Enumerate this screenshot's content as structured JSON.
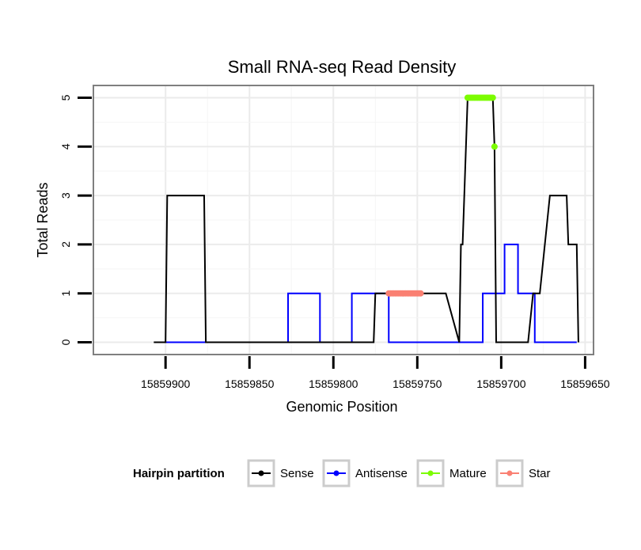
{
  "chart_data": {
    "type": "line",
    "title": "Small RNA-seq Read Density",
    "xlabel": "Genomic Position",
    "ylabel": "Total Reads",
    "x_reversed": true,
    "xlim": [
      15859943,
      15859645
    ],
    "ylim": [
      -0.25,
      5.25
    ],
    "x_ticks": [
      15859900,
      15859850,
      15859800,
      15859750,
      15859700,
      15859650
    ],
    "x_tick_labels": [
      "15859900",
      "15859850",
      "15859800",
      "15859750",
      "15859700",
      "15859650"
    ],
    "y_ticks": [
      0,
      1,
      2,
      3,
      4,
      5
    ],
    "y_tick_labels": [
      "0",
      "1",
      "2",
      "3",
      "4",
      "5"
    ],
    "grid": true,
    "legend": {
      "title": "Hairpin partition",
      "position": "bottom",
      "entries": [
        {
          "name": "Sense",
          "color": "#000000"
        },
        {
          "name": "Antisense",
          "color": "#0000ff"
        },
        {
          "name": "Mature",
          "color": "#7cfc00"
        },
        {
          "name": "Star",
          "color": "#fa8072"
        }
      ]
    },
    "series": [
      {
        "name": "Sense",
        "color": "#000000",
        "style": "line",
        "x": [
          15859907,
          15859900,
          15859899,
          15859877,
          15859876,
          15859830,
          15859829,
          15859820,
          15859815,
          15859805,
          15859798,
          15859793,
          15859787,
          15859776,
          15859775,
          15859758,
          15859751,
          15859750,
          15859742,
          15859738,
          15859733,
          15859725,
          15859724,
          15859723,
          15859720,
          15859714,
          15859709,
          15859705,
          15859704,
          15859703,
          15859684,
          15859681,
          15859678,
          15859677,
          15859671,
          15859661,
          15859660,
          15859655,
          15859654
        ],
        "y": [
          0,
          0,
          3,
          3,
          0,
          0,
          0,
          0,
          0,
          0,
          0,
          0,
          0,
          0,
          1,
          1,
          1,
          1,
          1,
          1,
          1,
          0,
          2,
          2,
          5,
          5,
          5,
          5,
          4,
          0,
          0,
          1,
          1,
          1,
          3,
          3,
          2,
          2,
          0
        ]
      },
      {
        "name": "Antisense",
        "color": "#0000ff",
        "style": "line",
        "x": [
          15859900,
          15859830,
          15859830,
          15859827,
          15859827,
          15859808,
          15859808,
          15859789,
          15859789,
          15859776,
          15859767,
          15859767,
          15859745,
          15859745,
          15859711,
          15859711,
          15859698,
          15859698,
          15859690,
          15859690,
          15859681,
          15859680,
          15859680,
          15859655
        ],
        "y": [
          0,
          0,
          0,
          0,
          1,
          1,
          0,
          0,
          1,
          1,
          1,
          0,
          0,
          0,
          0,
          1,
          1,
          2,
          2,
          1,
          1,
          1,
          0,
          0
        ]
      },
      {
        "name": "Mature",
        "color": "#7cfc00",
        "style": "points",
        "x": [
          15859720,
          15859719,
          15859718,
          15859717,
          15859716,
          15859715,
          15859714,
          15859713,
          15859712,
          15859711,
          15859710,
          15859709,
          15859708,
          15859707,
          15859706,
          15859705,
          15859704
        ],
        "y": [
          5,
          5,
          5,
          5,
          5,
          5,
          5,
          5,
          5,
          5,
          5,
          5,
          5,
          5,
          5,
          5,
          4
        ]
      },
      {
        "name": "Star",
        "color": "#fa8072",
        "style": "points",
        "x": [
          15859767,
          15859766,
          15859765,
          15859764,
          15859763,
          15859762,
          15859761,
          15859760,
          15859759,
          15859758,
          15859757,
          15859756,
          15859755,
          15859754,
          15859753,
          15859752,
          15859751,
          15859750,
          15859749,
          15859748
        ],
        "y": [
          1,
          1,
          1,
          1,
          1,
          1,
          1,
          1,
          1,
          1,
          1,
          1,
          1,
          1,
          1,
          1,
          1,
          1,
          1,
          1
        ]
      }
    ]
  }
}
